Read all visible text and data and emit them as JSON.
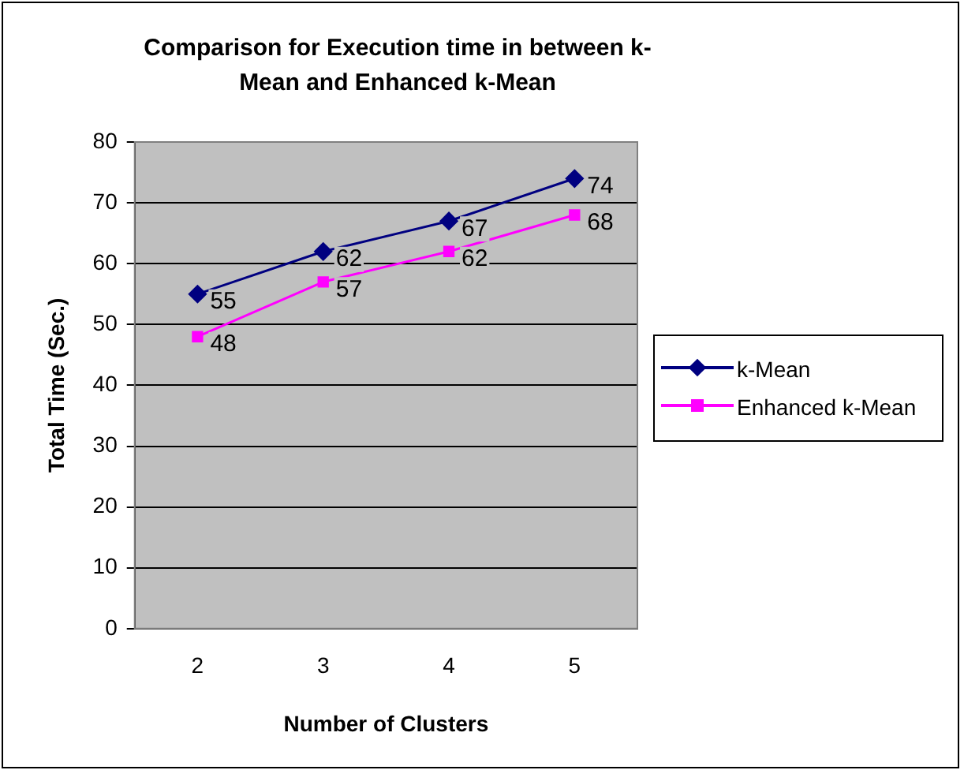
{
  "chart_data": {
    "type": "line",
    "title": "Comparison for Execution time in between k-Mean and Enhanced k-Mean",
    "xlabel": "Number of Clusters",
    "ylabel": "Total Time (Sec.)",
    "categories": [
      "2",
      "3",
      "4",
      "5"
    ],
    "series": [
      {
        "name": "k-Mean",
        "color": "#000080",
        "marker": "diamond",
        "values": [
          55,
          62,
          67,
          74
        ]
      },
      {
        "name": "Enhanced k-Mean",
        "color": "#ff00ff",
        "marker": "square",
        "values": [
          48,
          57,
          62,
          68
        ]
      }
    ],
    "ylim": [
      0,
      80
    ],
    "yticks": [
      0,
      10,
      20,
      30,
      40,
      50,
      60,
      70,
      80
    ],
    "grid": "y",
    "legend": "right",
    "data_labels": true,
    "line_style": "solid"
  }
}
